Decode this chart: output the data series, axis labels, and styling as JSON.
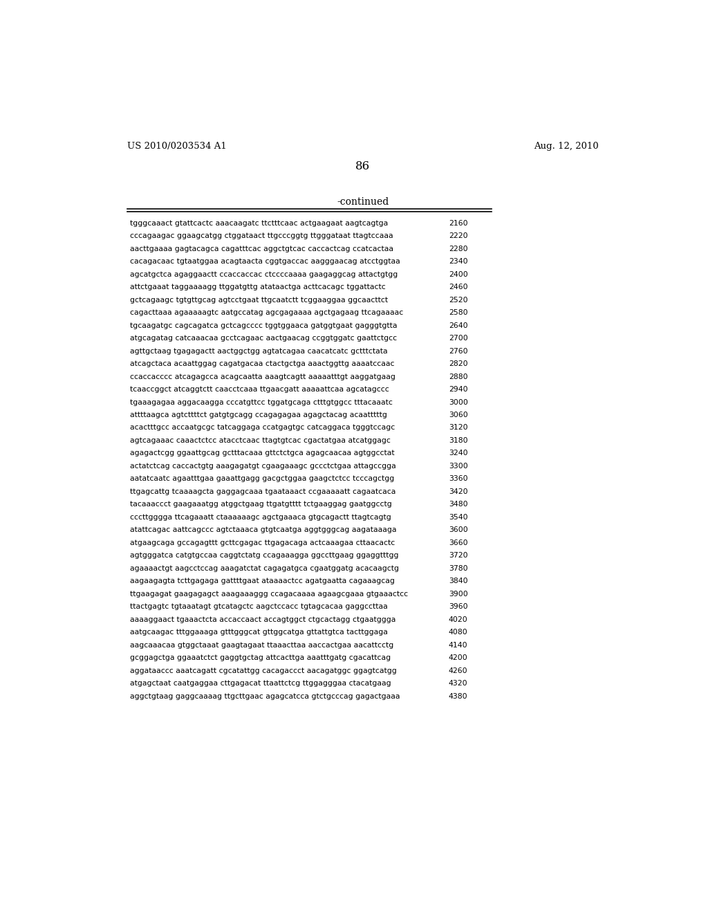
{
  "header_left": "US 2010/0203534 A1",
  "header_right": "Aug. 12, 2010",
  "page_number": "86",
  "continued_label": "-continued",
  "background_color": "#ffffff",
  "text_color": "#000000",
  "font_size_header": 9.5,
  "font_size_page": 12,
  "font_size_continued": 10,
  "font_size_sequence": 7.8,
  "sequence_lines": [
    [
      "tgggcaaact gtattcactc aaacaagatc ttctttcaac actgaagaat aagtcagtga",
      "2160"
    ],
    [
      "cccagaagac ggaagcatgg ctggataact ttgcccggtg ttgggataat ttagtccaaa",
      "2220"
    ],
    [
      "aacttgaaaa gagtacagca cagatttcac aggctgtcac caccactcag ccatcactaa",
      "2280"
    ],
    [
      "cacagacaac tgtaatggaa acagtaacta cggtgaccac aagggaacag atcctggtaa",
      "2340"
    ],
    [
      "agcatgctca agaggaactt ccaccaccac ctccccaaaa gaagaggcag attactgtgg",
      "2400"
    ],
    [
      "attctgaaat taggaaaagg ttggatgttg atataactga acttcacagc tggattactc",
      "2460"
    ],
    [
      "gctcagaagc tgtgttgcag agtcctgaat ttgcaatctt tcggaaggaa ggcaacttct",
      "2520"
    ],
    [
      "cagacttaaa agaaaaagtc aatgccatag agcgagaaaa agctgagaag ttcagaaaac",
      "2580"
    ],
    [
      "tgcaagatgc cagcagatca gctcagcccc tggtggaaca gatggtgaat gagggtgtta",
      "2640"
    ],
    [
      "atgcagatag catcaaacaa gcctcagaac aactgaacag ccggtggatc gaattctgcc",
      "2700"
    ],
    [
      "agttgctaag tgagagactt aactggctgg agtatcagaa caacatcatc gctttctata",
      "2760"
    ],
    [
      "atcagctaca acaattggag cagatgacaa ctactgctga aaactggttg aaaatccaac",
      "2820"
    ],
    [
      "ccaccacccc atcagagcca acagcaatta aaagtcagtt aaaaatttgt aaggatgaag",
      "2880"
    ],
    [
      "tcaaccggct atcaggtctt caacctcaaa ttgaacgatt aaaaattcaa agcatagccc",
      "2940"
    ],
    [
      "tgaaagagaa aggacaagga cccatgttcc tggatgcaga ctttgtggcc tttacaaatc",
      "3000"
    ],
    [
      "attttaagca agtcttttct gatgtgcagg ccagagagaa agagctacag acaatttttg",
      "3060"
    ],
    [
      "acactttgcc accaatgcgc tatcaggaga ccatgagtgc catcaggaca tgggtccagc",
      "3120"
    ],
    [
      "agtcagaaac caaactctcc atacctcaac ttagtgtcac cgactatgaa atcatggagc",
      "3180"
    ],
    [
      "agagactcgg ggaattgcag gctttacaaa gttctctgca agagcaacaa agtggcctat",
      "3240"
    ],
    [
      "actatctcag caccactgtg aaagagatgt cgaagaaagc gccctctgaa attagccgga",
      "3300"
    ],
    [
      "aatatcaatc agaatttgaa gaaattgagg gacgctggaa gaagctctcc tcccagctgg",
      "3360"
    ],
    [
      "ttgagcattg tcaaaagcta gaggagcaaa tgaataaact ccgaaaaatt cagaatcaca",
      "3420"
    ],
    [
      "tacaaaccct gaagaaatgg atggctgaag ttgatgtttt tctgaaggag gaatggcctg",
      "3480"
    ],
    [
      "cccttgggga ttcagaaatt ctaaaaaagc agctgaaaca gtgcagactt ttagtcagtg",
      "3540"
    ],
    [
      "atattcagac aattcagccc agtctaaaca gtgtcaatga aggtgggcag aagataaaga",
      "3600"
    ],
    [
      "atgaagcaga gccagagttt gcttcgagac ttgagacaga actcaaagaa cttaacactc",
      "3660"
    ],
    [
      "agtgggatca catgtgccaa caggtctatg ccagaaagga ggccttgaag ggaggtttgg",
      "3720"
    ],
    [
      "agaaaactgt aagcctccag aaagatctat cagagatgca cgaatggatg acacaagctg",
      "3780"
    ],
    [
      "aagaagagta tcttgagaga gattttgaat ataaaactcc agatgaatta cagaaagcag",
      "3840"
    ],
    [
      "ttgaagagat gaagagagct aaagaaaggg ccagacaaaa agaagcgaaa gtgaaactcc",
      "3900"
    ],
    [
      "ttactgagtc tgtaaatagt gtcatagctc aagctccacc tgtagcacaa gaggccttaa",
      "3960"
    ],
    [
      "aaaaggaact tgaaactcta accaccaact accagtggct ctgcactagg ctgaatggga",
      "4020"
    ],
    [
      "aatgcaagac tttggaaaga gtttgggcat gttggcatga gttattgtca tacttggaga",
      "4080"
    ],
    [
      "aagcaaacaa gtggctaaat gaagtagaat ttaaacttaa aaccactgaa aacattcctg",
      "4140"
    ],
    [
      "gcggagctga ggaaatctct gaggtgctag attcacttga aaatttgatg cgacattcag",
      "4200"
    ],
    [
      "aggataaccc aaatcagatt cgcatattgg cacagaccct aacagatggc ggagtcatgg",
      "4260"
    ],
    [
      "atgagctaat caatgaggaa cttgagacat ttaattctcg ttggagggaa ctacatgaag",
      "4320"
    ],
    [
      "aggctgtaag gaggcaaaag ttgcttgaac agagcatcca gtctgcccag gagactgaaa",
      "4380"
    ]
  ]
}
